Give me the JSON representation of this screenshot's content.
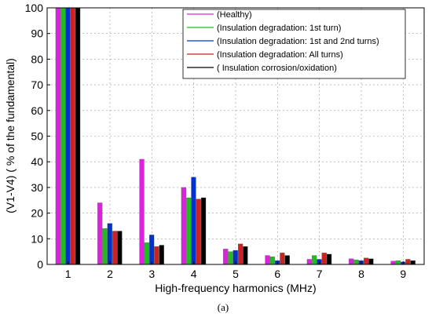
{
  "chart_data": {
    "type": "bar",
    "xlabel": "High-frequency harmonics (MHz)",
    "ylabel": "(V1-V4) ( % of the fundamental)",
    "caption": "(a)",
    "categories": [
      "1",
      "2",
      "3",
      "4",
      "5",
      "6",
      "7",
      "8",
      "9"
    ],
    "ylim": [
      0,
      100
    ],
    "yticks": [
      "0",
      "10",
      "20",
      "30",
      "40",
      "50",
      "60",
      "70",
      "80",
      "90",
      "100"
    ],
    "grid": true,
    "legend_position": "top-right",
    "legend": [
      "(Healthy)",
      "(Insulation degradation: 1st turn)",
      "(Insulation degradation: 1st and 2nd turns)",
      "(Insulation degradation: All turns)",
      "( Insulation corrosion/oxidation)"
    ],
    "series": [
      {
        "color": "#dd22dd",
        "values": [
          100,
          24,
          41,
          30,
          6,
          3.5,
          2,
          2.2,
          1.3
        ]
      },
      {
        "color": "#22bb22",
        "values": [
          100,
          14,
          8.5,
          26,
          5,
          3,
          3.5,
          1.8,
          1.5
        ]
      },
      {
        "color": "#0033cc",
        "values": [
          100,
          16,
          11.5,
          34,
          5.5,
          1.5,
          2,
          1.5,
          1
        ]
      },
      {
        "color": "#cc2222",
        "values": [
          100,
          13,
          7,
          25.5,
          8,
          4.5,
          4.5,
          2.5,
          2
        ]
      },
      {
        "color": "#000000",
        "values": [
          100,
          13,
          7.5,
          26,
          7,
          3.5,
          4,
          2.2,
          1.5
        ]
      }
    ]
  }
}
